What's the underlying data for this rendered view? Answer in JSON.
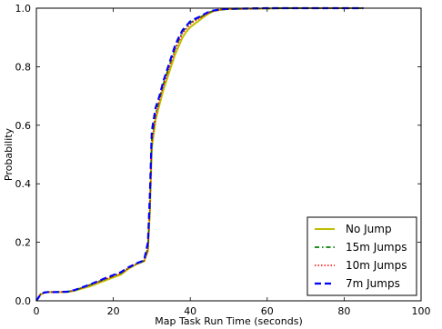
{
  "chart_data": {
    "type": "line",
    "title": "",
    "xlabel": "Map Task Run Time (seconds)",
    "ylabel": "Probability",
    "xlim": [
      0,
      100
    ],
    "ylim": [
      0,
      1.0
    ],
    "xticks": [
      0,
      20,
      40,
      60,
      80,
      100
    ],
    "yticks": [
      0.0,
      0.2,
      0.4,
      0.6,
      0.8,
      1.0
    ],
    "grid": false,
    "legend_position": "lower-right",
    "series": [
      {
        "name": "No Jump",
        "color": "#bfbf00",
        "style": "solid",
        "x": [
          0,
          1,
          2,
          3,
          5,
          8,
          10,
          14,
          18,
          22,
          24,
          26,
          28,
          29,
          29.5,
          30,
          31,
          32,
          33,
          34,
          35,
          36,
          37,
          38,
          39,
          40,
          41,
          42,
          43,
          44,
          45,
          46,
          48,
          50,
          55,
          60,
          65,
          70,
          80,
          85
        ],
        "y": [
          0.0,
          0.02,
          0.028,
          0.03,
          0.03,
          0.03,
          0.035,
          0.05,
          0.07,
          0.09,
          0.11,
          0.125,
          0.135,
          0.17,
          0.3,
          0.52,
          0.62,
          0.67,
          0.72,
          0.76,
          0.8,
          0.84,
          0.87,
          0.9,
          0.92,
          0.935,
          0.945,
          0.955,
          0.965,
          0.975,
          0.983,
          0.99,
          0.995,
          0.997,
          0.998,
          0.999,
          1.0,
          1.0,
          1.0,
          1.0
        ]
      },
      {
        "name": "15m Jumps",
        "color": "#007f00",
        "style": "dashdot",
        "x": [
          0,
          1,
          2,
          3,
          5,
          8,
          10,
          14,
          18,
          22,
          24,
          26,
          28,
          29,
          29.5,
          30,
          31,
          32,
          33,
          34,
          35,
          36,
          37,
          38,
          39,
          40,
          41,
          42,
          43,
          44,
          45,
          46,
          48,
          50,
          55,
          60,
          65,
          70,
          80,
          85
        ],
        "y": [
          0.0,
          0.022,
          0.029,
          0.03,
          0.03,
          0.031,
          0.036,
          0.055,
          0.075,
          0.095,
          0.113,
          0.127,
          0.137,
          0.18,
          0.32,
          0.55,
          0.64,
          0.69,
          0.74,
          0.78,
          0.82,
          0.86,
          0.89,
          0.92,
          0.935,
          0.95,
          0.958,
          0.965,
          0.972,
          0.98,
          0.986,
          0.991,
          0.995,
          0.997,
          0.998,
          0.999,
          1.0,
          1.0,
          1.0,
          1.0
        ]
      },
      {
        "name": "10m Jumps",
        "color": "#ff0000",
        "style": "dotted",
        "x": [
          0,
          1,
          2,
          3,
          5,
          8,
          10,
          14,
          18,
          22,
          24,
          26,
          28,
          29,
          29.5,
          30,
          31,
          32,
          33,
          34,
          35,
          36,
          37,
          38,
          39,
          40,
          41,
          42,
          43,
          44,
          45,
          46,
          48,
          50,
          55,
          60,
          65,
          70,
          80,
          85
        ],
        "y": [
          0.0,
          0.021,
          0.028,
          0.03,
          0.03,
          0.031,
          0.036,
          0.054,
          0.074,
          0.094,
          0.112,
          0.126,
          0.136,
          0.175,
          0.31,
          0.54,
          0.63,
          0.685,
          0.735,
          0.775,
          0.815,
          0.855,
          0.885,
          0.915,
          0.93,
          0.945,
          0.955,
          0.963,
          0.97,
          0.978,
          0.985,
          0.99,
          0.995,
          0.997,
          0.998,
          0.999,
          1.0,
          1.0,
          1.0,
          1.0
        ]
      },
      {
        "name": "7m Jumps",
        "color": "#0000ff",
        "style": "dashed",
        "x": [
          0,
          1,
          2,
          3,
          5,
          8,
          10,
          14,
          18,
          22,
          24,
          26,
          28,
          29,
          29.5,
          30,
          31,
          32,
          33,
          34,
          35,
          36,
          37,
          38,
          39,
          40,
          41,
          42,
          43,
          44,
          45,
          46,
          48,
          50,
          55,
          60,
          65,
          70,
          80,
          85
        ],
        "y": [
          0.0,
          0.02,
          0.028,
          0.03,
          0.03,
          0.031,
          0.037,
          0.056,
          0.078,
          0.098,
          0.115,
          0.128,
          0.138,
          0.2,
          0.36,
          0.58,
          0.66,
          0.7,
          0.75,
          0.79,
          0.83,
          0.87,
          0.9,
          0.925,
          0.94,
          0.955,
          0.962,
          0.968,
          0.975,
          0.982,
          0.988,
          0.992,
          0.996,
          0.998,
          0.999,
          1.0,
          1.0,
          1.0,
          1.0,
          1.0
        ]
      }
    ]
  }
}
